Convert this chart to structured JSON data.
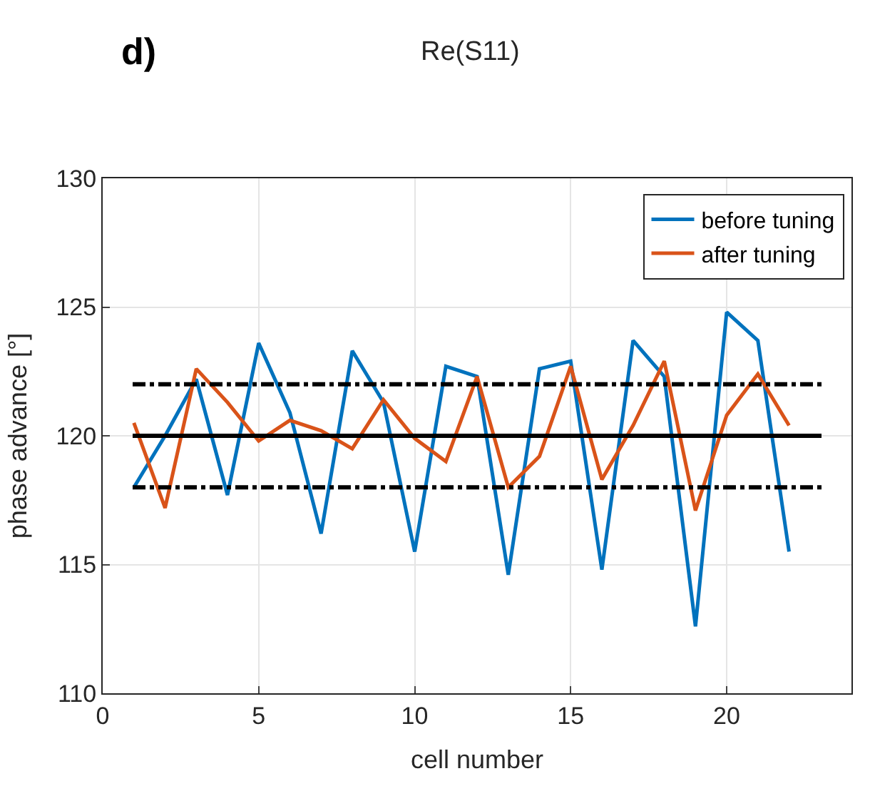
{
  "chart_data": {
    "type": "line",
    "xlabel": "cell number",
    "ylabel": "phase advance [°]",
    "annotations": [
      "d)",
      "Re(S11)"
    ],
    "x": [
      1,
      2,
      3,
      4,
      5,
      6,
      7,
      8,
      9,
      10,
      11,
      12,
      13,
      14,
      15,
      16,
      17,
      18,
      19,
      20,
      21,
      22
    ],
    "series": [
      {
        "name": "before tuning",
        "color": "#0072bd",
        "values": [
          118.0,
          120.0,
          122.2,
          117.7,
          123.6,
          120.9,
          116.2,
          123.3,
          121.3,
          115.5,
          122.7,
          122.3,
          114.6,
          122.6,
          122.9,
          114.8,
          123.7,
          122.3,
          112.6,
          124.8,
          123.7,
          115.5
        ]
      },
      {
        "name": "after tuning",
        "color": "#d95319",
        "values": [
          120.5,
          117.2,
          122.6,
          121.3,
          119.8,
          120.6,
          120.2,
          119.5,
          121.4,
          119.9,
          119.0,
          122.3,
          118.0,
          119.2,
          122.7,
          118.3,
          120.4,
          122.9,
          117.1,
          120.8,
          122.4,
          120.4
        ]
      }
    ],
    "ref_lines": [
      {
        "axis": "y",
        "value": 120,
        "color": "#000000",
        "line_style": "solid"
      },
      {
        "axis": "y",
        "value": 122,
        "color": "#000000",
        "line_style": "dashed"
      },
      {
        "axis": "y",
        "value": 118,
        "color": "#000000",
        "line_style": "dashed"
      }
    ],
    "xlim": [
      0,
      24
    ],
    "xticks": [
      0,
      5,
      10,
      15,
      20
    ],
    "ylim": [
      110,
      130
    ],
    "yticks": [
      110,
      115,
      120,
      125,
      130
    ],
    "grid": true,
    "legend": "top right",
    "marker": "none",
    "line_style": "solid"
  }
}
